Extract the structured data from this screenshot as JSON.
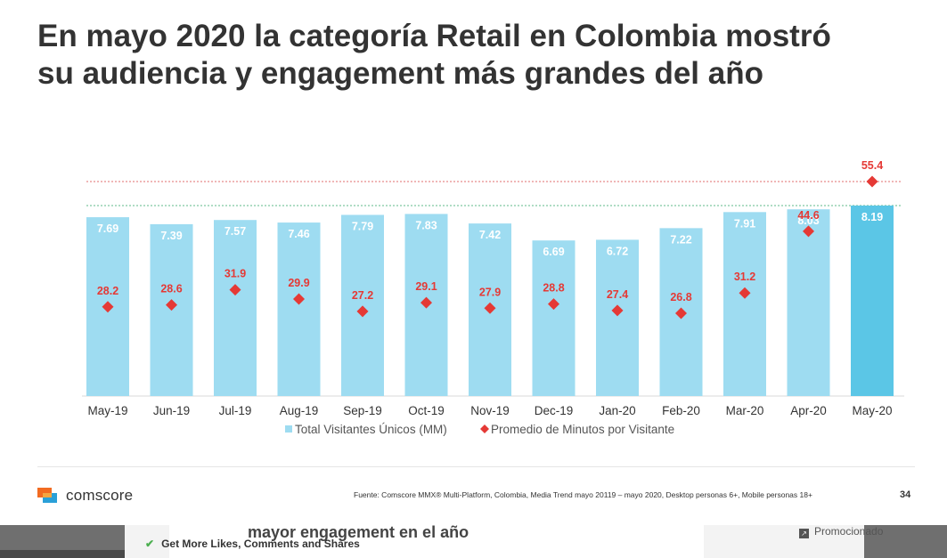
{
  "slide": {
    "title_line1": "En mayo 2020 la categoría Retail en Colombia mostró",
    "title_line2": "su audiencia y engagement más grandes del año",
    "logo_text": "comscore",
    "source": "Fuente: Comscore MMX® Multi-Platform, Colombia, Media Trend mayo 20119 – mayo  2020, Desktop personas 6+, Mobile personas 18+",
    "page_number": "34"
  },
  "colors": {
    "bar": "#9edcf1",
    "bar_highlight": "#5bc6e6",
    "marker": "#e53935",
    "bar_label": "#ffffff",
    "marker_label": "#e53935",
    "ref_red": "#e88a8a",
    "ref_green": "#7fc8a0"
  },
  "chart_data": {
    "type": "bar",
    "categories": [
      "May-19",
      "Jun-19",
      "Jul-19",
      "Aug-19",
      "Sep-19",
      "Oct-19",
      "Nov-19",
      "Dec-19",
      "Jan-20",
      "Feb-20",
      "Mar-20",
      "Apr-20",
      "May-20"
    ],
    "series": [
      {
        "name": "Total Visitantes Únicos (MM)",
        "type": "bar",
        "values": [
          7.69,
          7.39,
          7.57,
          7.46,
          7.79,
          7.83,
          7.42,
          6.69,
          6.72,
          7.22,
          7.91,
          8.03,
          8.19
        ],
        "value_labels": [
          "7.69",
          "7.39",
          "7.57",
          "7.46",
          "7.79",
          "7.83",
          "7.42",
          "6.69",
          "6.72",
          "7.22",
          "7.91",
          "8.03",
          "8.19"
        ]
      },
      {
        "name": "Promedio de Minutos por Visitante",
        "type": "scatter",
        "marker": "diamond",
        "values": [
          28.2,
          28.6,
          31.9,
          29.9,
          27.2,
          29.1,
          27.9,
          28.8,
          27.4,
          26.8,
          31.2,
          44.6,
          55.4
        ],
        "value_labels": [
          "28.2",
          "28.6",
          "31.9",
          "29.9",
          "27.2",
          "29.1",
          "27.9",
          "28.8",
          "27.4",
          "26.8",
          "31.2",
          "44.6",
          "55.4"
        ]
      }
    ],
    "highlight_category": "May-20",
    "reference_lines": [
      {
        "series": "Promedio de Minutos por Visitante",
        "value": 55.4,
        "style": "dotted",
        "color": "#e88a8a"
      },
      {
        "series": "Total Visitantes Únicos (MM)",
        "value": 8.19,
        "style": "dotted",
        "color": "#7fc8a0"
      }
    ],
    "ylim_bars": [
      0,
      8.19
    ],
    "ylim_minutes": [
      0,
      55.4
    ],
    "legend_position": "bottom",
    "grid": false
  },
  "below": {
    "title": "mayor engagement en el año",
    "promo": "Promocionado",
    "ad_text": "Get More Likes, Comments and Shares"
  }
}
